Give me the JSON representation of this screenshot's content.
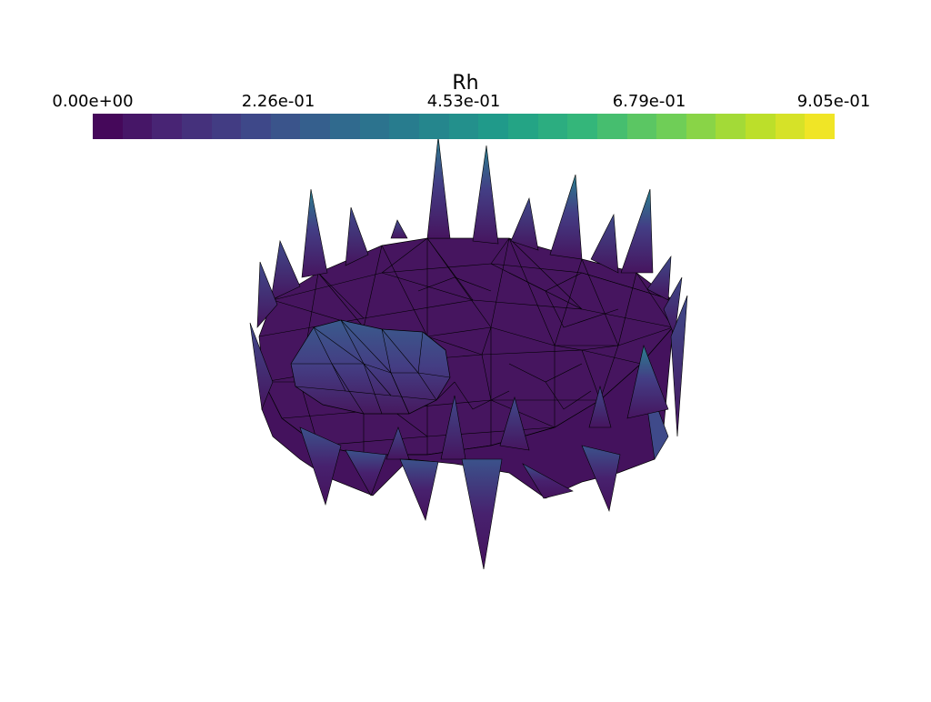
{
  "scalar_bar": {
    "title": "Rh",
    "tick_labels": [
      "0.00e+00",
      "2.26e-01",
      "4.53e-01",
      "6.79e-01",
      "9.05e-01"
    ],
    "range": [
      0.0,
      0.905
    ],
    "num_colors": 25,
    "colormap": "viridis",
    "colormap_stops": [
      "#440154",
      "#482878",
      "#3e4989",
      "#31688e",
      "#26828e",
      "#1f9e89",
      "#35b779",
      "#6ece58",
      "#b5de2b",
      "#fde725"
    ]
  },
  "mesh": {
    "surface_color": "#46145e",
    "edge_color": "#000000",
    "spike_tip_colors": [
      "#2a7d8e",
      "#3b548a",
      "#45337a"
    ]
  }
}
